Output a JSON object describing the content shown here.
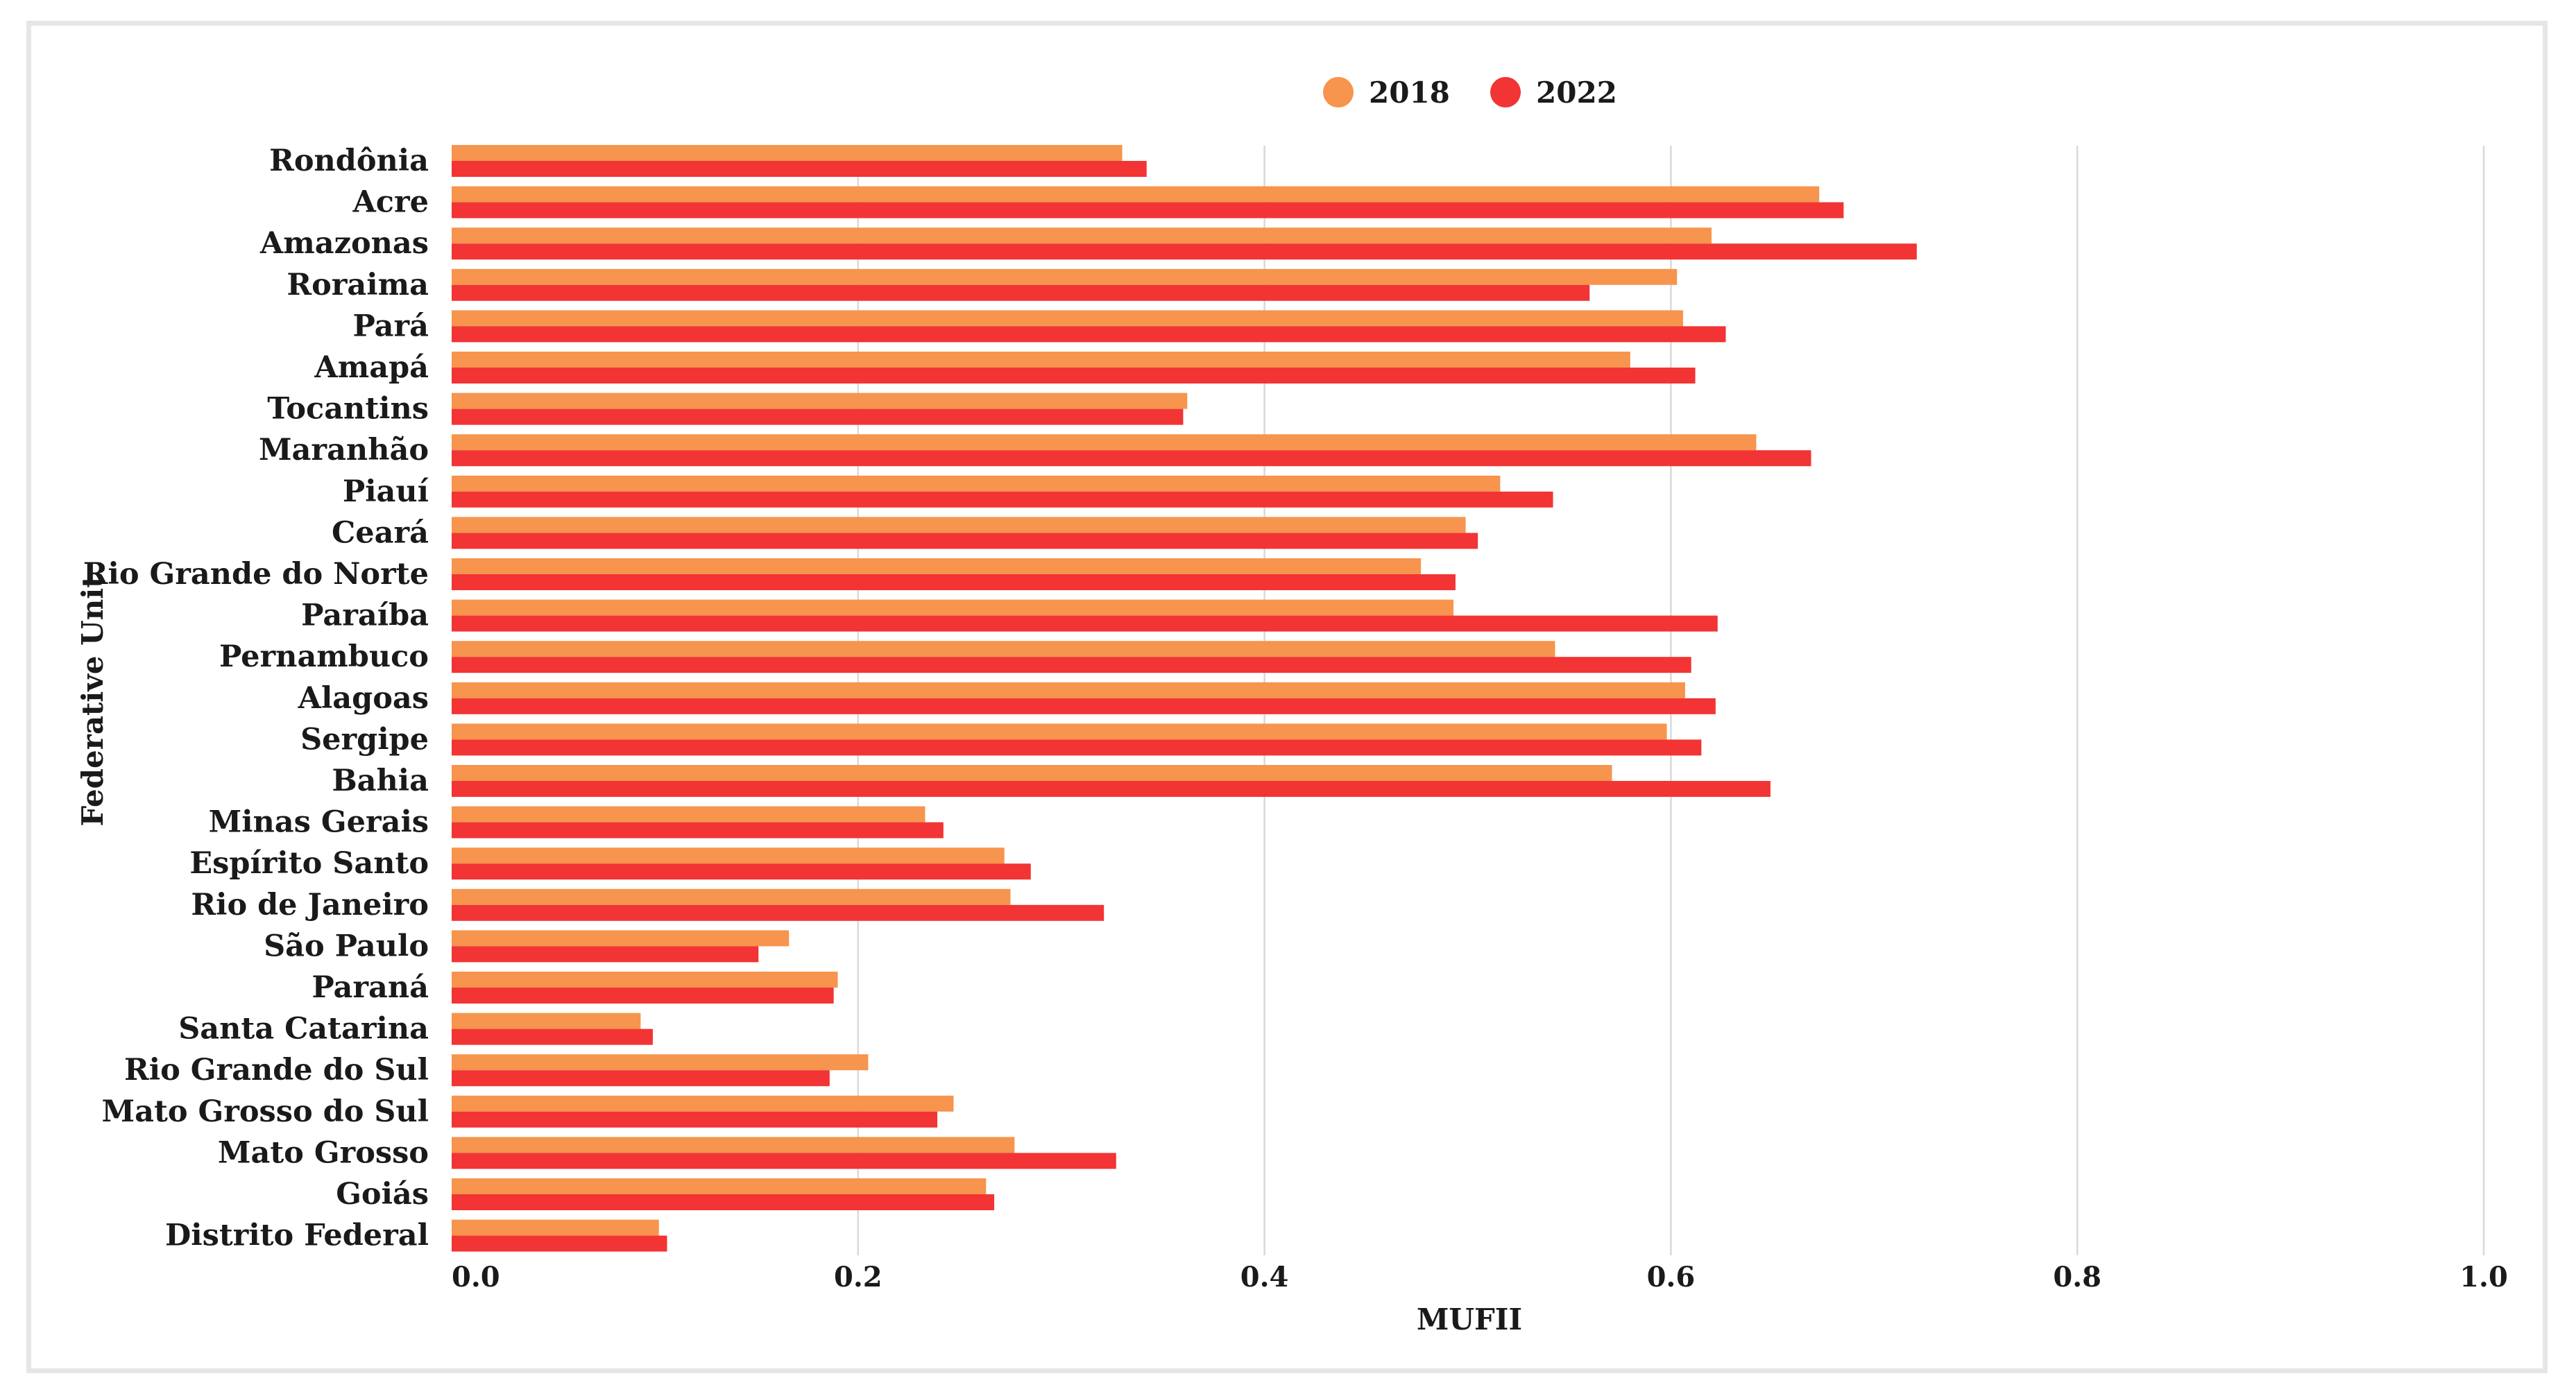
{
  "chart_data": {
    "type": "bar",
    "orientation": "horizontal",
    "xlabel": "MUFII",
    "ylabel": "Federative Unit",
    "xlim": [
      0.0,
      1.0
    ],
    "xticks": [
      "0.0",
      "0.2",
      "0.4",
      "0.6",
      "0.8",
      "1.0"
    ],
    "grid": true,
    "legend_position": "top",
    "categories": [
      "Rondônia",
      "Acre",
      "Amazonas",
      "Roraima",
      "Pará",
      "Amapá",
      "Tocantins",
      "Maranhão",
      "Piauí",
      "Ceará",
      "Rio Grande do Norte",
      "Paraíba",
      "Pernambuco",
      "Alagoas",
      "Sergipe",
      "Bahia",
      "Minas Gerais",
      "Espírito Santo",
      "Rio de Janeiro",
      "São Paulo",
      "Paraná",
      "Santa Catarina",
      "Rio Grande do Sul",
      "Mato Grosso do Sul",
      "Mato Grosso",
      "Goiás",
      "Distrito Federal"
    ],
    "series": [
      {
        "name": "2018",
        "color": "#f7944d",
        "values": [
          0.33,
          0.673,
          0.62,
          0.603,
          0.606,
          0.58,
          0.362,
          0.642,
          0.516,
          0.499,
          0.477,
          0.493,
          0.543,
          0.607,
          0.598,
          0.571,
          0.233,
          0.272,
          0.275,
          0.166,
          0.19,
          0.093,
          0.205,
          0.247,
          0.277,
          0.263,
          0.102
        ]
      },
      {
        "name": "2022",
        "color": "#f23434",
        "values": [
          0.342,
          0.685,
          0.721,
          0.56,
          0.627,
          0.612,
          0.36,
          0.669,
          0.542,
          0.505,
          0.494,
          0.623,
          0.61,
          0.622,
          0.615,
          0.649,
          0.242,
          0.285,
          0.321,
          0.151,
          0.188,
          0.099,
          0.186,
          0.239,
          0.327,
          0.267,
          0.106
        ]
      }
    ]
  }
}
